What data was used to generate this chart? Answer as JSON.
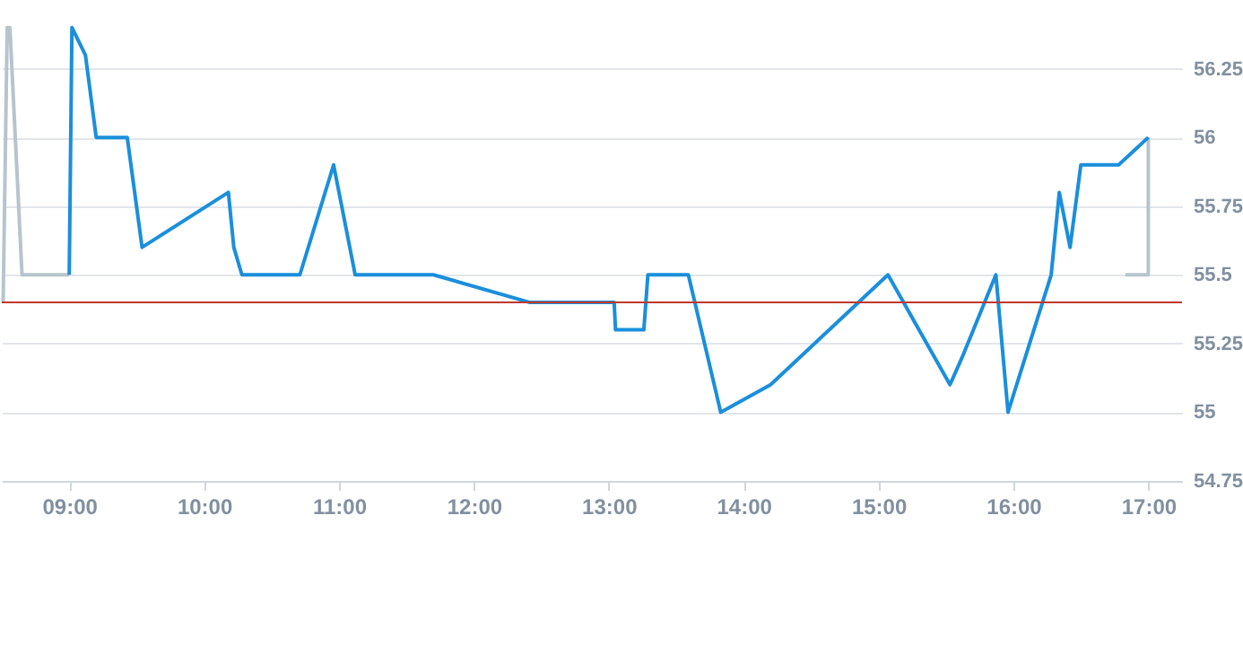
{
  "chart_data": {
    "type": "line",
    "xlim": [
      8.5,
      17.25
    ],
    "xticks": [
      {
        "value": 9,
        "label": "09:00"
      },
      {
        "value": 10,
        "label": "10:00"
      },
      {
        "value": 11,
        "label": "11:00"
      },
      {
        "value": 12,
        "label": "12:00"
      },
      {
        "value": 13,
        "label": "13:00"
      },
      {
        "value": 14,
        "label": "14:00"
      },
      {
        "value": 15,
        "label": "15:00"
      },
      {
        "value": 16,
        "label": "16:00"
      },
      {
        "value": 17,
        "label": "17:00"
      }
    ],
    "ylim": [
      54.75,
      56.5
    ],
    "yticks": [
      54.75,
      55,
      55.25,
      55.5,
      55.75,
      56,
      56.25
    ],
    "grid": "y",
    "series": [
      {
        "color": "#b8c4cc",
        "x": [
          8.51,
          8.54,
          8.56,
          8.65,
          9.0
        ],
        "values": [
          55.4,
          56.4,
          56.4,
          55.5,
          55.5
        ]
      },
      {
        "color": "#b8c4cc",
        "x": [
          16.83,
          17.0,
          17.0
        ],
        "values": [
          55.5,
          55.5,
          56.0
        ]
      },
      {
        "color": "#1a8fdc",
        "x": [
          9.0,
          9.02,
          9.12,
          9.2,
          9.43,
          9.54,
          10.18,
          10.22,
          10.28,
          10.71,
          10.96,
          11.12,
          11.7,
          12.41,
          13.04,
          13.05,
          13.26,
          13.29,
          13.59,
          13.83,
          14.2,
          15.07,
          15.53,
          15.62,
          15.87,
          15.96,
          16.28,
          16.34,
          16.42,
          16.5,
          16.78,
          17.0
        ],
        "values": [
          55.5,
          56.4,
          56.3,
          56.0,
          56.0,
          55.6,
          55.8,
          55.6,
          55.5,
          55.5,
          55.9,
          55.5,
          55.5,
          55.4,
          55.4,
          55.3,
          55.3,
          55.5,
          55.5,
          55.0,
          55.1,
          55.5,
          55.1,
          55.2,
          55.5,
          55.0,
          55.5,
          55.8,
          55.6,
          55.9,
          55.9,
          56.0
        ]
      }
    ],
    "ref_lines": [
      {
        "axis": "y",
        "value": 55.4,
        "color": "#c0392b"
      }
    ]
  }
}
